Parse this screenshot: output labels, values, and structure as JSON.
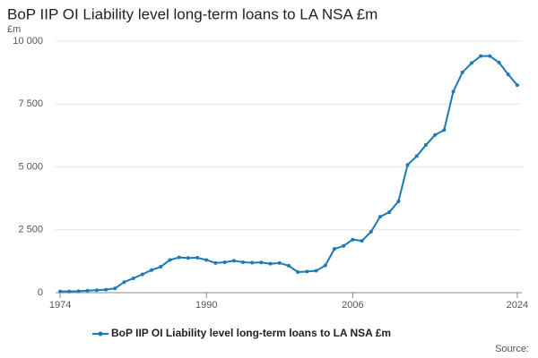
{
  "chart_data": {
    "type": "line",
    "title": "BoP IIP OI Liability level long-term loans to LA NSA £m",
    "y_unit": "£m",
    "source": "Source:",
    "x": [
      1974,
      1975,
      1976,
      1977,
      1978,
      1979,
      1980,
      1981,
      1982,
      1983,
      1984,
      1985,
      1986,
      1987,
      1988,
      1989,
      1990,
      1991,
      1992,
      1993,
      1994,
      1995,
      1996,
      1997,
      1998,
      1999,
      2000,
      2001,
      2002,
      2003,
      2004,
      2005,
      2006,
      2007,
      2008,
      2009,
      2010,
      2011,
      2012,
      2013,
      2014,
      2015,
      2016,
      2017,
      2018,
      2019,
      2020,
      2021,
      2022,
      2023,
      2024
    ],
    "series": [
      {
        "name": "BoP IIP OI Liability level long-term loans to LA NSA £m",
        "color": "#1a7ab5",
        "values": [
          50,
          50,
          60,
          80,
          100,
          120,
          170,
          420,
          570,
          730,
          900,
          1030,
          1300,
          1400,
          1380,
          1390,
          1300,
          1180,
          1210,
          1270,
          1210,
          1190,
          1200,
          1150,
          1180,
          1070,
          820,
          840,
          870,
          1080,
          1740,
          1860,
          2110,
          2060,
          2420,
          3020,
          3200,
          3630,
          5080,
          5430,
          5870,
          6270,
          6470,
          8000,
          8760,
          9130,
          9410,
          9410,
          9150,
          8680,
          8250
        ]
      }
    ],
    "xlim": [
      1973.5,
      2024.5
    ],
    "xticks": [
      1974,
      1990,
      2006,
      2024
    ],
    "ylim": [
      0,
      10000
    ],
    "yticks": [
      0,
      {
        "value": 2500,
        "label": "2 500"
      },
      {
        "value": 5000,
        "label": "5 000"
      },
      {
        "value": 7500,
        "label": "7 500"
      },
      {
        "value": 10000,
        "label": "10 000"
      }
    ],
    "grid": true
  }
}
